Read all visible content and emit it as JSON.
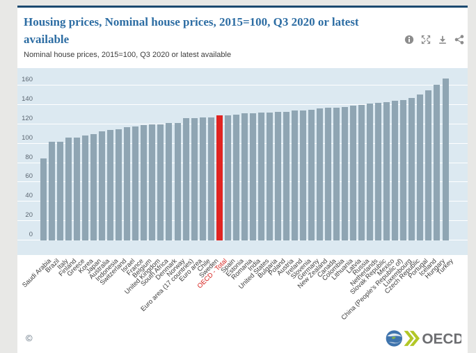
{
  "header": {
    "title": "Housing prices, Nominal house prices, 2015=100, Q3 2020 or latest available",
    "subtitle": "Nominal house prices, 2015=100, Q3 2020 or latest available",
    "toolbar_icons": [
      "info-icon",
      "fullscreen-icon",
      "download-icon",
      "share-icon"
    ]
  },
  "chart_data": {
    "type": "bar",
    "title": "Housing prices, Nominal house prices, 2015=100, Q3 2020 or latest available",
    "xlabel": "",
    "ylabel": "",
    "ylim": [
      0,
      180
    ],
    "yticks": [
      0,
      20,
      40,
      60,
      80,
      100,
      120,
      140,
      160
    ],
    "grid": true,
    "legend": false,
    "highlight_category": "OECD - Total",
    "colors": {
      "bar": "#8fa5b3",
      "highlight": "#e02421",
      "plot_background": "#dce9f1",
      "gridline": "#ffffff"
    },
    "categories": [
      "Saudi Arabia",
      "Brazil",
      "Italy",
      "Finland",
      "Greece",
      "Korea",
      "Japan",
      "Australia",
      "Indonesia",
      "Switzerland",
      "Israel",
      "France",
      "Belgium",
      "United Kingdom",
      "South Africa",
      "Denmark",
      "Norway",
      "Euro area (17 countries)",
      "Euro area",
      "Chile",
      "Sweden",
      "OECD - Total",
      "Spain",
      "Estonia",
      "Romania",
      "India",
      "United States",
      "Bulgaria",
      "Poland",
      "Austria",
      "Ireland",
      "Slovenia",
      "Germany",
      "New Zealand",
      "Canada",
      "Colombia",
      "Lithuania",
      "Latvia",
      "Russia",
      "Netherlands",
      "Slovak Republic",
      "Mexico",
      "China (People's Republic of)",
      "Luxembourg",
      "Czech Republic",
      "Portugal",
      "Iceland",
      "Hungary",
      "Turkey"
    ],
    "values": [
      85,
      102,
      102,
      106,
      106,
      108,
      110,
      113,
      114,
      115,
      117,
      118,
      119,
      120,
      120,
      121,
      121,
      126,
      126,
      127,
      127,
      129,
      129,
      130,
      131,
      131,
      132,
      132,
      133,
      133,
      134,
      134,
      135,
      136,
      137,
      137,
      138,
      139,
      140,
      141,
      142,
      143,
      144,
      145,
      147,
      151,
      155,
      161,
      167
    ]
  },
  "footer": {
    "copyright": "©",
    "logo": {
      "text": "OECD"
    }
  }
}
